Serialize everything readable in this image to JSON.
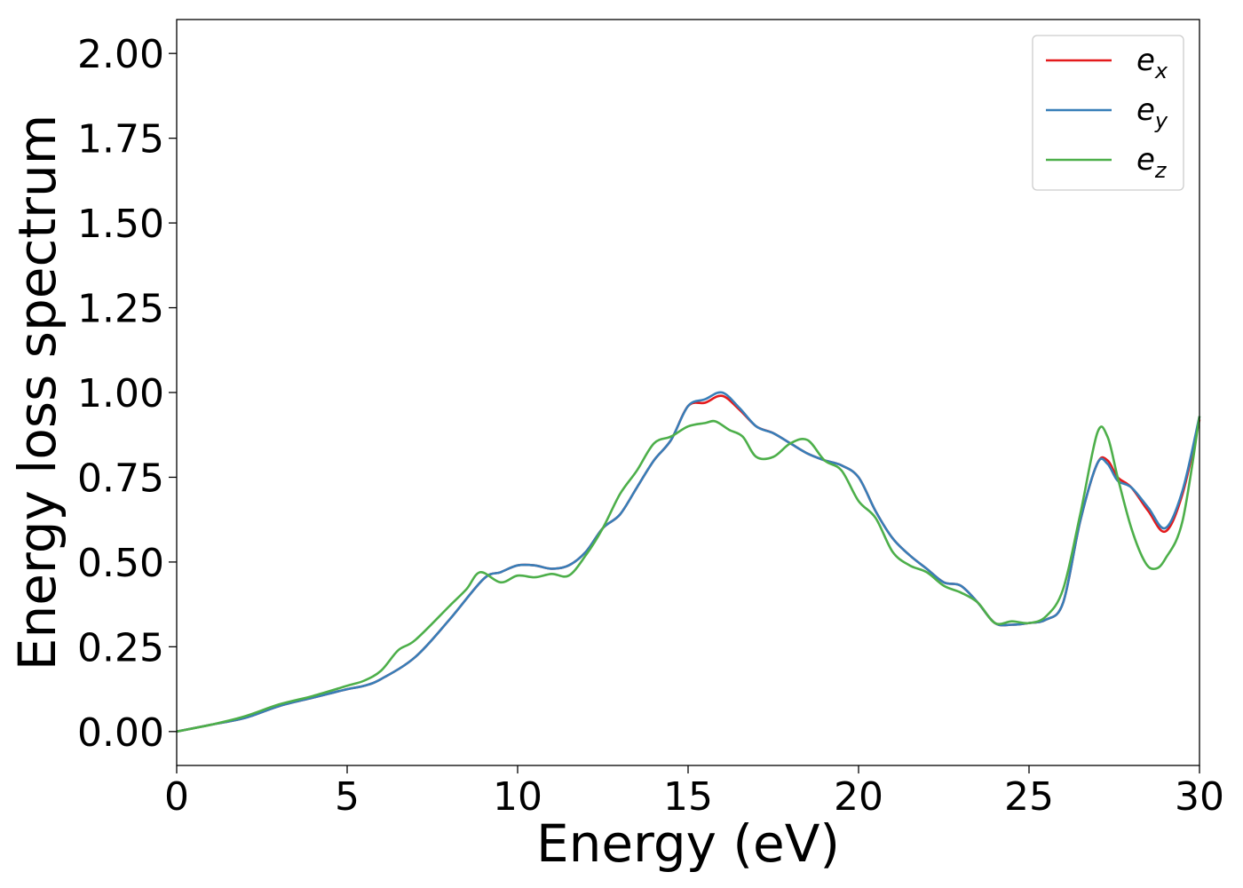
{
  "chart_data": {
    "type": "line",
    "xlabel": "Energy (eV)",
    "ylabel": "Energy loss spectrum",
    "xlim": [
      0,
      30
    ],
    "ylim": [
      -0.1,
      2.1
    ],
    "x_ticks": [
      "0",
      "5",
      "10",
      "15",
      "20",
      "25",
      "30"
    ],
    "y_ticks": [
      "0.00",
      "0.25",
      "0.50",
      "0.75",
      "1.00",
      "1.25",
      "1.50",
      "1.75",
      "2.00"
    ],
    "grid": false,
    "legend_position": "top-right",
    "series": [
      {
        "name": "e_x",
        "legend_base": "e",
        "legend_sub": "x",
        "color": "#e41a1c",
        "points": [
          [
            0,
            0.0
          ],
          [
            1,
            0.02
          ],
          [
            2,
            0.04
          ],
          [
            3,
            0.075
          ],
          [
            4,
            0.1
          ],
          [
            5,
            0.125
          ],
          [
            5.5,
            0.135
          ],
          [
            6,
            0.155
          ],
          [
            7,
            0.22
          ],
          [
            8,
            0.33
          ],
          [
            9,
            0.45
          ],
          [
            9.5,
            0.47
          ],
          [
            10,
            0.49
          ],
          [
            10.5,
            0.49
          ],
          [
            11,
            0.48
          ],
          [
            11.5,
            0.49
          ],
          [
            12,
            0.53
          ],
          [
            12.5,
            0.6
          ],
          [
            13,
            0.64
          ],
          [
            13.5,
            0.72
          ],
          [
            14,
            0.8
          ],
          [
            14.5,
            0.86
          ],
          [
            15,
            0.96
          ],
          [
            15.5,
            0.97
          ],
          [
            16,
            0.99
          ],
          [
            16.5,
            0.95
          ],
          [
            17,
            0.9
          ],
          [
            17.5,
            0.88
          ],
          [
            18,
            0.85
          ],
          [
            18.5,
            0.82
          ],
          [
            19,
            0.8
          ],
          [
            19.5,
            0.785
          ],
          [
            20,
            0.75
          ],
          [
            20.5,
            0.65
          ],
          [
            21,
            0.57
          ],
          [
            21.5,
            0.52
          ],
          [
            22,
            0.48
          ],
          [
            22.5,
            0.44
          ],
          [
            23,
            0.43
          ],
          [
            23.5,
            0.38
          ],
          [
            24,
            0.32
          ],
          [
            24.5,
            0.315
          ],
          [
            25,
            0.32
          ],
          [
            25.5,
            0.33
          ],
          [
            26,
            0.38
          ],
          [
            26.5,
            0.62
          ],
          [
            27,
            0.79
          ],
          [
            27.3,
            0.8
          ],
          [
            27.6,
            0.75
          ],
          [
            28,
            0.72
          ],
          [
            28.5,
            0.65
          ],
          [
            29,
            0.59
          ],
          [
            29.5,
            0.7
          ],
          [
            30,
            0.92
          ]
        ]
      },
      {
        "name": "e_y",
        "legend_base": "e",
        "legend_sub": "y",
        "color": "#377eb8",
        "points": [
          [
            0,
            0.0
          ],
          [
            1,
            0.02
          ],
          [
            2,
            0.04
          ],
          [
            3,
            0.075
          ],
          [
            4,
            0.1
          ],
          [
            5,
            0.125
          ],
          [
            5.5,
            0.135
          ],
          [
            6,
            0.155
          ],
          [
            7,
            0.22
          ],
          [
            8,
            0.33
          ],
          [
            9,
            0.45
          ],
          [
            9.5,
            0.47
          ],
          [
            10,
            0.49
          ],
          [
            10.5,
            0.49
          ],
          [
            11,
            0.48
          ],
          [
            11.5,
            0.49
          ],
          [
            12,
            0.53
          ],
          [
            12.5,
            0.6
          ],
          [
            13,
            0.64
          ],
          [
            13.5,
            0.72
          ],
          [
            14,
            0.8
          ],
          [
            14.5,
            0.86
          ],
          [
            15,
            0.96
          ],
          [
            15.5,
            0.98
          ],
          [
            16,
            1.0
          ],
          [
            16.5,
            0.955
          ],
          [
            17,
            0.9
          ],
          [
            17.5,
            0.88
          ],
          [
            18,
            0.85
          ],
          [
            18.5,
            0.82
          ],
          [
            19,
            0.8
          ],
          [
            19.5,
            0.785
          ],
          [
            20,
            0.75
          ],
          [
            20.5,
            0.65
          ],
          [
            21,
            0.57
          ],
          [
            21.5,
            0.52
          ],
          [
            22,
            0.48
          ],
          [
            22.5,
            0.44
          ],
          [
            23,
            0.43
          ],
          [
            23.5,
            0.38
          ],
          [
            24,
            0.32
          ],
          [
            24.5,
            0.315
          ],
          [
            25,
            0.32
          ],
          [
            25.5,
            0.33
          ],
          [
            26,
            0.38
          ],
          [
            26.5,
            0.62
          ],
          [
            27,
            0.79
          ],
          [
            27.3,
            0.79
          ],
          [
            27.6,
            0.74
          ],
          [
            28,
            0.72
          ],
          [
            28.5,
            0.66
          ],
          [
            29,
            0.6
          ],
          [
            29.5,
            0.71
          ],
          [
            30,
            0.93
          ]
        ]
      },
      {
        "name": "e_z",
        "legend_base": "e",
        "legend_sub": "z",
        "color": "#4daf4a",
        "points": [
          [
            0,
            0.0
          ],
          [
            1,
            0.02
          ],
          [
            2,
            0.045
          ],
          [
            3,
            0.08
          ],
          [
            4,
            0.105
          ],
          [
            5,
            0.135
          ],
          [
            5.5,
            0.15
          ],
          [
            6,
            0.18
          ],
          [
            6.5,
            0.24
          ],
          [
            7,
            0.27
          ],
          [
            8,
            0.37
          ],
          [
            8.5,
            0.42
          ],
          [
            8.9,
            0.47
          ],
          [
            9.5,
            0.44
          ],
          [
            10,
            0.46
          ],
          [
            10.5,
            0.455
          ],
          [
            11,
            0.465
          ],
          [
            11.5,
            0.46
          ],
          [
            12,
            0.52
          ],
          [
            12.5,
            0.6
          ],
          [
            13,
            0.7
          ],
          [
            13.5,
            0.77
          ],
          [
            14,
            0.85
          ],
          [
            14.5,
            0.87
          ],
          [
            15,
            0.9
          ],
          [
            15.5,
            0.91
          ],
          [
            15.8,
            0.915
          ],
          [
            16.2,
            0.89
          ],
          [
            16.6,
            0.87
          ],
          [
            17,
            0.81
          ],
          [
            17.5,
            0.81
          ],
          [
            18,
            0.85
          ],
          [
            18.5,
            0.86
          ],
          [
            19,
            0.8
          ],
          [
            19.5,
            0.77
          ],
          [
            20,
            0.68
          ],
          [
            20.5,
            0.63
          ],
          [
            21,
            0.53
          ],
          [
            21.5,
            0.49
          ],
          [
            22,
            0.47
          ],
          [
            22.5,
            0.43
          ],
          [
            23,
            0.41
          ],
          [
            23.5,
            0.38
          ],
          [
            24,
            0.32
          ],
          [
            24.5,
            0.325
          ],
          [
            25,
            0.32
          ],
          [
            25.5,
            0.34
          ],
          [
            26,
            0.42
          ],
          [
            26.5,
            0.64
          ],
          [
            27,
            0.88
          ],
          [
            27.3,
            0.87
          ],
          [
            27.6,
            0.75
          ],
          [
            28,
            0.6
          ],
          [
            28.4,
            0.5
          ],
          [
            28.7,
            0.48
          ],
          [
            29,
            0.51
          ],
          [
            29.5,
            0.62
          ],
          [
            30,
            0.93
          ]
        ]
      }
    ]
  }
}
